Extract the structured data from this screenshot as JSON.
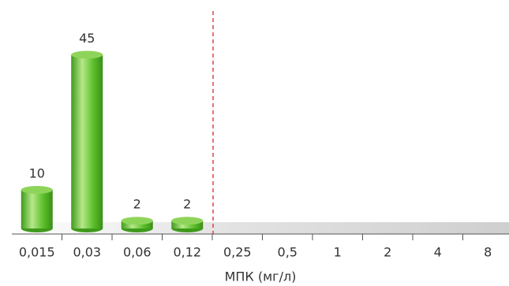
{
  "chart_data": {
    "type": "bar",
    "categories": [
      "0,015",
      "0,03",
      "0,06",
      "0,12",
      "0,25",
      "0,5",
      "1",
      "2",
      "4",
      "8"
    ],
    "values": [
      10,
      45,
      2,
      2,
      null,
      null,
      null,
      null,
      null,
      null
    ],
    "color": "#5cbf2a",
    "x_label": "МПК (мг/л)"
  }
}
